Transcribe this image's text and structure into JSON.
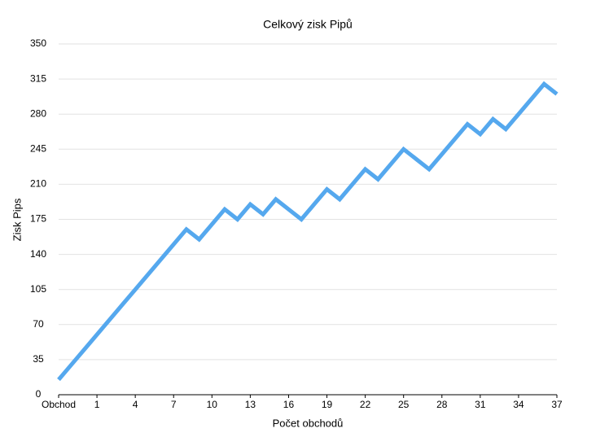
{
  "chart_data": {
    "type": "line",
    "title": "Celkový zisk Pipů",
    "x_label": "Počet obchodů",
    "y_label": "Zisk Pips",
    "categories": [
      "Obchod",
      null,
      null,
      "1",
      null,
      null,
      "4",
      null,
      null,
      "7",
      null,
      null,
      "10",
      null,
      null,
      "13",
      null,
      null,
      "16",
      null,
      null,
      "19",
      null,
      null,
      "22",
      null,
      null,
      "25",
      null,
      null,
      "28",
      null,
      null,
      "31",
      null,
      null,
      "34",
      null,
      null,
      "37"
    ],
    "series": [
      {
        "name": "Zisk Pips",
        "color": "#55a8ee",
        "values": [
          15,
          30,
          45,
          60,
          75,
          90,
          105,
          120,
          135,
          150,
          165,
          155,
          170,
          185,
          175,
          190,
          180,
          195,
          185,
          175,
          190,
          205,
          195,
          210,
          225,
          215,
          230,
          245,
          235,
          225,
          240,
          255,
          270,
          260,
          275,
          265,
          280,
          295,
          310,
          300
        ]
      }
    ],
    "ylim": [
      0,
      350
    ],
    "yticks": [
      0,
      35,
      70,
      105,
      140,
      175,
      210,
      245,
      280,
      315,
      350
    ],
    "grid": true
  }
}
